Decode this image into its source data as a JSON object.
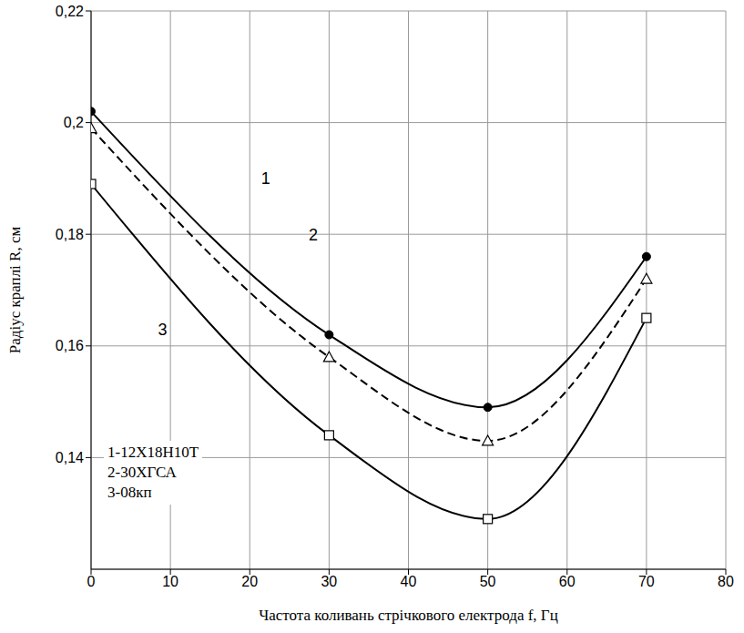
{
  "chart_data": {
    "type": "line",
    "x_label": "Частота коливань стрічкового електрода f, Гц",
    "y_label": "Радіус краплі R, см",
    "x": [
      0,
      30,
      50,
      70
    ],
    "series": [
      {
        "name": "1-12Х18Н10Т",
        "color": "#000000",
        "marker": "circle",
        "line_style": "solid",
        "values": [
          0.202,
          0.162,
          0.149,
          0.176
        ]
      },
      {
        "name": "2-30ХГСА",
        "color": "#000000",
        "marker": "triangle",
        "line_style": "dashed",
        "values": [
          0.199,
          0.158,
          0.143,
          0.172
        ]
      },
      {
        "name": "3-08кп",
        "color": "#000000",
        "marker": "square",
        "line_style": "solid",
        "values": [
          0.189,
          0.144,
          0.129,
          0.165
        ]
      }
    ],
    "xlim": [
      0,
      80
    ],
    "xticks": [
      0,
      10,
      20,
      30,
      40,
      50,
      60,
      70,
      80
    ],
    "ylim": [
      0.12,
      0.22
    ],
    "yticks": [
      {
        "value": 0.14,
        "label": "0,14"
      },
      {
        "value": 0.16,
        "label": "0,16"
      },
      {
        "value": 0.18,
        "label": "0,18"
      },
      {
        "value": 0.2,
        "label": "0,2"
      },
      {
        "value": 0.22,
        "label": "0,22"
      }
    ],
    "grid": true,
    "legend": "lower left",
    "annotations": [
      {
        "text": "1",
        "x": 22,
        "y": 0.19
      },
      {
        "text": "2",
        "x": 28,
        "y": 0.18
      },
      {
        "text": "3",
        "x": 9,
        "y": 0.163
      }
    ]
  }
}
